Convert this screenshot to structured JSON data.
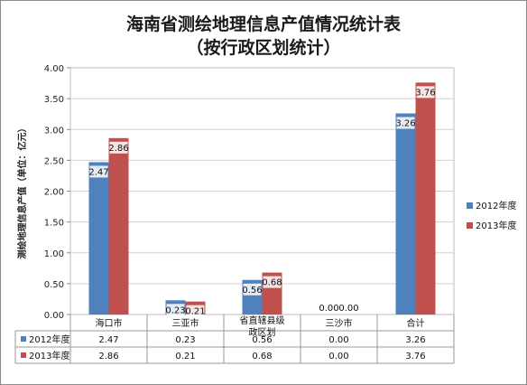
{
  "chart_data": {
    "type": "bar",
    "title": "海南省测绘地理信息产值情况统计表",
    "subtitle": "（按行政区划统计）",
    "ylabel": "测绘地理信息产值（单位：亿元）",
    "xlabel": "",
    "ylim": [
      0,
      4
    ],
    "y_ticks": [
      "0.00",
      "0.50",
      "1.00",
      "1.50",
      "2.00",
      "2.50",
      "3.00",
      "3.50",
      "4.00"
    ],
    "categories": [
      "海口市",
      "三亚市",
      "省直辖县级行政区划",
      "三沙市",
      "合计"
    ],
    "category_lines": [
      [
        "海口市"
      ],
      [
        "三亚市"
      ],
      [
        "省直辖县级",
        "政区划"
      ],
      [
        "三沙市"
      ],
      [
        "合计"
      ]
    ],
    "series": [
      {
        "name": "2012年度",
        "color": "#4f81bd",
        "values": [
          2.47,
          0.23,
          0.56,
          0.0,
          3.26
        ],
        "labels": [
          "2.47",
          "0.23",
          "0.56",
          "0.00",
          "3.26"
        ]
      },
      {
        "name": "2013年度",
        "color": "#c0504d",
        "values": [
          2.86,
          0.21,
          0.68,
          0.0,
          3.76
        ],
        "labels": [
          "2.86",
          "0.21",
          "0.68",
          "0.00",
          "3.76"
        ]
      }
    ],
    "grid": true,
    "legend": "right",
    "data_table": true
  }
}
